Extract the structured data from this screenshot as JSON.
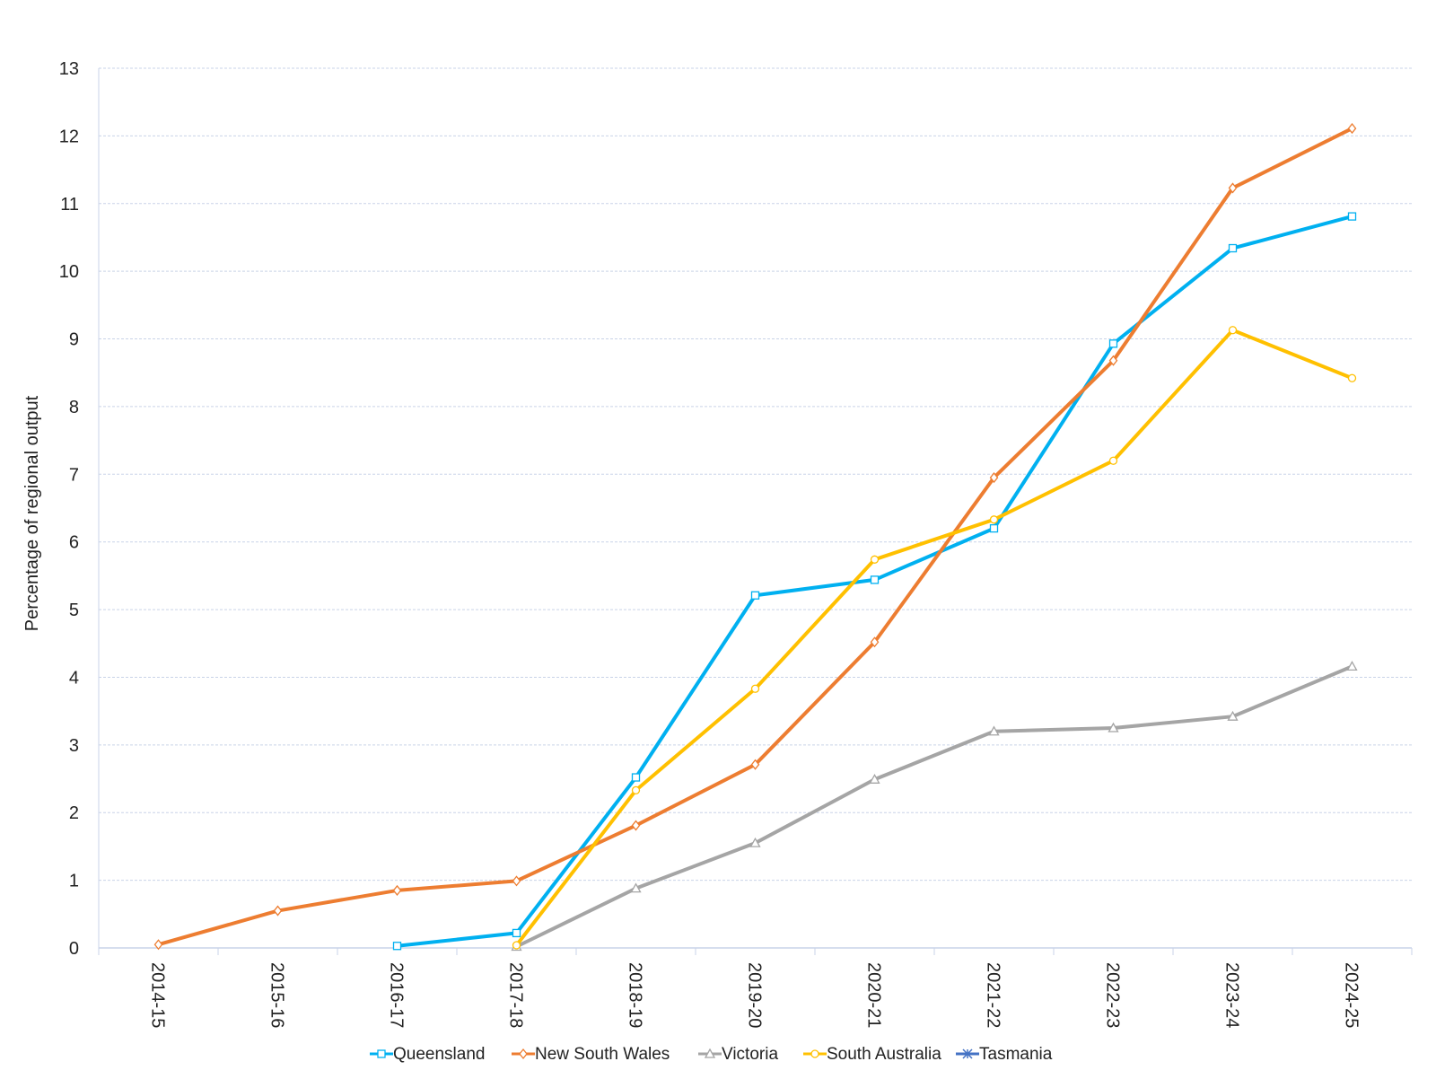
{
  "chart_data": {
    "type": "line",
    "title": "",
    "xlabel": "",
    "ylabel": "Percentage of regional output",
    "ylim": [
      0,
      13
    ],
    "y_ticks": [
      "0",
      "1",
      "2",
      "3",
      "4",
      "5",
      "6",
      "7",
      "8",
      "9",
      "10",
      "11",
      "12",
      "13"
    ],
    "grid": "horizontal dashed",
    "legend_position": "bottom",
    "categories": [
      "2014-15",
      "2015-16",
      "2016-17",
      "2017-18",
      "2018-19",
      "2019-20",
      "2020-21",
      "2021-22",
      "2022-23",
      "2023-24",
      "2024-25"
    ],
    "series": [
      {
        "name": "Queensland",
        "color": "#00b0f0",
        "marker": "square",
        "values": [
          null,
          null,
          0.03,
          0.22,
          2.52,
          5.21,
          5.44,
          6.2,
          8.93,
          10.34,
          10.81
        ]
      },
      {
        "name": "New South Wales",
        "color": "#ed7d31",
        "marker": "diamond",
        "values": [
          0.05,
          0.55,
          0.85,
          0.99,
          1.81,
          2.71,
          4.52,
          6.95,
          8.68,
          11.23,
          12.11
        ]
      },
      {
        "name": "Victoria",
        "color": "#a5a5a5",
        "marker": "triangle",
        "values": [
          null,
          null,
          null,
          0.02,
          0.88,
          1.55,
          2.49,
          3.2,
          3.25,
          3.42,
          4.16
        ]
      },
      {
        "name": "South Australia",
        "color": "#ffc000",
        "marker": "circle",
        "values": [
          null,
          null,
          null,
          0.04,
          2.33,
          3.83,
          5.74,
          6.33,
          7.2,
          9.13,
          8.42
        ]
      },
      {
        "name": "Tasmania",
        "color": "#4472c4",
        "marker": "star",
        "values": [
          null,
          null,
          null,
          null,
          null,
          null,
          null,
          null,
          null,
          null,
          null
        ]
      }
    ]
  }
}
